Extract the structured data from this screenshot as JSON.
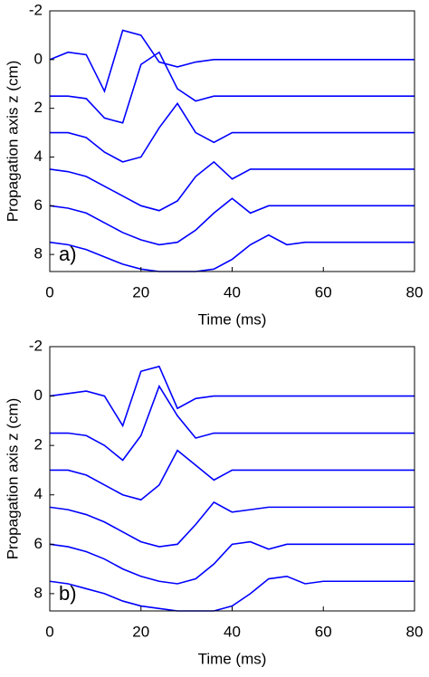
{
  "chart_data": [
    {
      "type": "line",
      "xlabel": "Time (ms)",
      "ylabel": "Propagation axis z (cm)",
      "annotation": "a)",
      "x": [
        0,
        4,
        8,
        12,
        16,
        20,
        24,
        28,
        32,
        36,
        40,
        44,
        48,
        52,
        56,
        60,
        64,
        68,
        72,
        76,
        80
      ],
      "xlim": [
        0,
        80
      ],
      "xticks": [
        0,
        20,
        40,
        60,
        80
      ],
      "ylim": [
        -2,
        8.7
      ],
      "yticks": [
        -2,
        0,
        2,
        4,
        6,
        8
      ],
      "y_inverted": true,
      "series": [
        {
          "color": "#0000ff",
          "values": [
            0,
            -0.3,
            -0.2,
            1.3,
            -1.2,
            -1.0,
            0.1,
            0.3,
            0.1,
            0,
            0,
            0,
            0,
            0,
            0,
            0,
            0,
            0,
            0,
            0,
            0
          ]
        },
        {
          "color": "#0000ff",
          "values": [
            1.5,
            1.5,
            1.6,
            2.4,
            2.6,
            0.2,
            -0.3,
            1.2,
            1.7,
            1.5,
            1.5,
            1.5,
            1.5,
            1.5,
            1.5,
            1.5,
            1.5,
            1.5,
            1.5,
            1.5,
            1.5
          ]
        },
        {
          "color": "#0000ff",
          "values": [
            3,
            3,
            3.2,
            3.8,
            4.2,
            4.0,
            2.8,
            1.8,
            3.0,
            3.4,
            3.0,
            3,
            3,
            3,
            3,
            3,
            3,
            3,
            3,
            3,
            3
          ]
        },
        {
          "color": "#0000ff",
          "values": [
            4.5,
            4.6,
            4.8,
            5.2,
            5.6,
            6,
            6.2,
            5.8,
            4.8,
            4.2,
            4.9,
            4.5,
            4.5,
            4.5,
            4.5,
            4.5,
            4.5,
            4.5,
            4.5,
            4.5,
            4.5
          ]
        },
        {
          "color": "#0000ff",
          "values": [
            6,
            6.1,
            6.3,
            6.7,
            7.1,
            7.4,
            7.6,
            7.5,
            7.0,
            6.3,
            5.7,
            6.3,
            6,
            6,
            6,
            6,
            6,
            6,
            6,
            6,
            6
          ]
        },
        {
          "color": "#0000ff",
          "values": [
            7.5,
            7.6,
            7.8,
            8.1,
            8.4,
            8.6,
            8.7,
            8.7,
            8.7,
            8.6,
            8.2,
            7.6,
            7.2,
            7.6,
            7.5,
            7.5,
            7.5,
            7.5,
            7.5,
            7.5,
            7.5
          ]
        }
      ]
    },
    {
      "type": "line",
      "xlabel": "Time (ms)",
      "ylabel": "Propagation axis z (cm)",
      "annotation": "b)",
      "x": [
        0,
        4,
        8,
        12,
        16,
        20,
        24,
        28,
        32,
        36,
        40,
        44,
        48,
        52,
        56,
        60,
        64,
        68,
        72,
        76,
        80
      ],
      "xlim": [
        0,
        80
      ],
      "xticks": [
        0,
        20,
        40,
        60,
        80
      ],
      "ylim": [
        -2,
        8.7
      ],
      "yticks": [
        -2,
        0,
        2,
        4,
        6,
        8
      ],
      "y_inverted": true,
      "series": [
        {
          "color": "#0000ff",
          "values": [
            0,
            -0.1,
            -0.2,
            0,
            1.2,
            -1.0,
            -1.2,
            0.5,
            0.1,
            0,
            0,
            0,
            0,
            0,
            0,
            0,
            0,
            0,
            0,
            0,
            0
          ]
        },
        {
          "color": "#0000ff",
          "values": [
            1.5,
            1.5,
            1.6,
            2.0,
            2.6,
            1.6,
            -0.4,
            0.8,
            1.7,
            1.5,
            1.5,
            1.5,
            1.5,
            1.5,
            1.5,
            1.5,
            1.5,
            1.5,
            1.5,
            1.5,
            1.5
          ]
        },
        {
          "color": "#0000ff",
          "values": [
            3,
            3,
            3.2,
            3.6,
            4.0,
            4.2,
            3.6,
            2.2,
            2.8,
            3.4,
            3.0,
            3,
            3,
            3,
            3,
            3,
            3,
            3,
            3,
            3,
            3
          ]
        },
        {
          "color": "#0000ff",
          "values": [
            4.5,
            4.6,
            4.8,
            5.1,
            5.5,
            5.9,
            6.1,
            6.0,
            5.2,
            4.3,
            4.7,
            4.6,
            4.5,
            4.5,
            4.5,
            4.5,
            4.5,
            4.5,
            4.5,
            4.5,
            4.5
          ]
        },
        {
          "color": "#0000ff",
          "values": [
            6,
            6.1,
            6.3,
            6.6,
            7.0,
            7.3,
            7.5,
            7.6,
            7.4,
            6.8,
            6.0,
            5.9,
            6.2,
            6,
            6,
            6,
            6,
            6,
            6,
            6,
            6
          ]
        },
        {
          "color": "#0000ff",
          "values": [
            7.5,
            7.6,
            7.8,
            8.0,
            8.3,
            8.5,
            8.6,
            8.7,
            8.7,
            8.7,
            8.5,
            8.0,
            7.4,
            7.3,
            7.6,
            7.5,
            7.5,
            7.5,
            7.5,
            7.5,
            7.5
          ]
        }
      ]
    }
  ]
}
